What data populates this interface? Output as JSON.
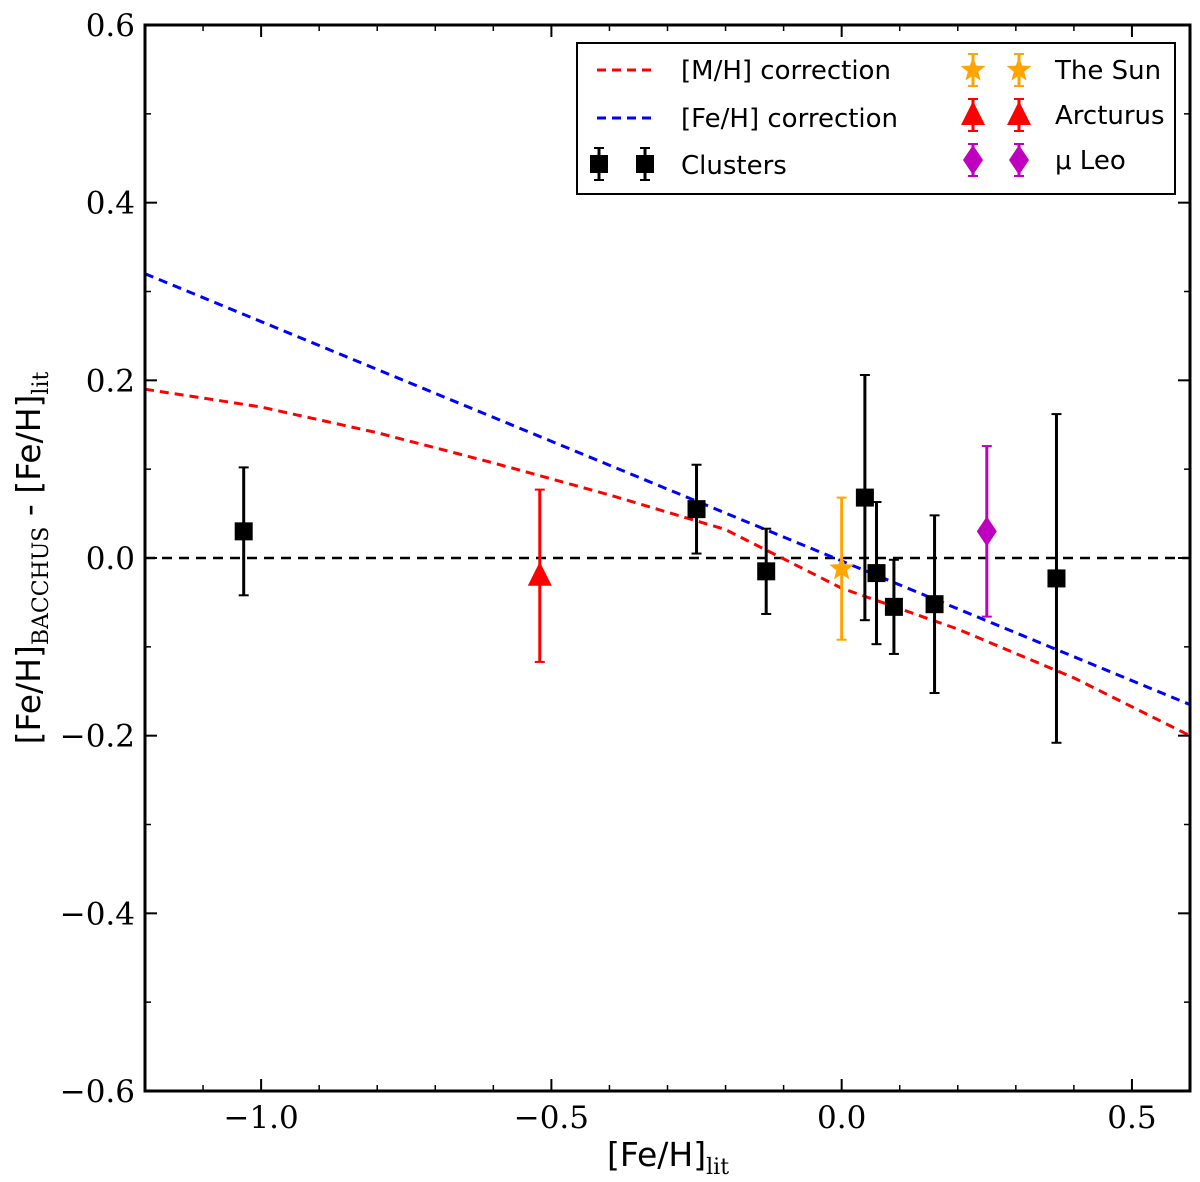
{
  "chart_data": {
    "type": "scatter",
    "title": "",
    "xlabel": {
      "main": "[Fe/H]",
      "sub": "lit"
    },
    "ylabel": {
      "main1": "[Fe/H]",
      "sub1": "BACCHUS",
      "mid": " - [Fe/H]",
      "sub2": "lit"
    },
    "xlim": [
      -1.2,
      0.6
    ],
    "ylim": [
      -0.6,
      0.6
    ],
    "xticks": [
      -1.0,
      -0.5,
      0.0,
      0.5
    ],
    "xtick_labels": [
      "−1.0",
      "−0.5",
      "0.0",
      "0.5"
    ],
    "yticks": [
      -0.6,
      -0.4,
      -0.2,
      0.0,
      0.2,
      0.4,
      0.6
    ],
    "ytick_labels": [
      "−0.6",
      "−0.4",
      "−0.2",
      "0.0",
      "0.2",
      "0.4",
      "0.6"
    ],
    "grid": false,
    "legend_position": "top-right",
    "reference_line": {
      "y": 0.0,
      "color": "#000000",
      "style": "dashed"
    },
    "lines": [
      {
        "name": "[M/H] correction",
        "color": "#ff0000",
        "style": "dashed",
        "x": [
          -1.2,
          -1.0,
          -0.8,
          -0.6,
          -0.4,
          -0.2,
          0.0,
          0.2,
          0.4,
          0.6
        ],
        "y": [
          0.19,
          0.17,
          0.141,
          0.107,
          0.071,
          0.032,
          -0.034,
          -0.08,
          -0.135,
          -0.2
        ]
      },
      {
        "name": "[Fe/H] correction",
        "color": "#0000ff",
        "style": "dashed",
        "x": [
          -1.2,
          0.6
        ],
        "y": [
          0.32,
          -0.165
        ]
      }
    ],
    "series": [
      {
        "name": "Clusters",
        "color": "#000000",
        "marker": "square",
        "points": [
          {
            "x": -1.03,
            "y": 0.03,
            "err": 0.072
          },
          {
            "x": -0.25,
            "y": 0.055,
            "err": 0.05
          },
          {
            "x": -0.13,
            "y": -0.015,
            "err": 0.048
          },
          {
            "x": 0.04,
            "y": 0.068,
            "err": 0.138
          },
          {
            "x": 0.06,
            "y": -0.017,
            "err": 0.08
          },
          {
            "x": 0.09,
            "y": -0.055,
            "err": 0.053
          },
          {
            "x": 0.16,
            "y": -0.052,
            "err": 0.1
          },
          {
            "x": 0.37,
            "y": -0.023,
            "err": 0.185
          }
        ]
      },
      {
        "name": "The Sun",
        "color": "#ffa500",
        "marker": "star",
        "points": [
          {
            "x": 0.0,
            "y": -0.012,
            "err": 0.08
          }
        ]
      },
      {
        "name": "Arcturus",
        "color": "#ff0000",
        "marker": "triangle",
        "points": [
          {
            "x": -0.52,
            "y": -0.02,
            "err": 0.097
          }
        ]
      },
      {
        "name": "μ Leo",
        "color": "#bf00bf",
        "marker": "diamond",
        "points": [
          {
            "x": 0.25,
            "y": 0.03,
            "err": 0.096
          }
        ]
      }
    ],
    "legend": {
      "entries": [
        {
          "label": "[M/H] correction",
          "kind": "line",
          "color": "#ff0000"
        },
        {
          "label": "[Fe/H] correction",
          "kind": "line",
          "color": "#0000ff"
        },
        {
          "label": "Clusters",
          "kind": "marker",
          "marker": "square",
          "color": "#000000"
        },
        {
          "label": "The Sun",
          "kind": "marker",
          "marker": "star",
          "color": "#ffa500"
        },
        {
          "label": "Arcturus",
          "kind": "marker",
          "marker": "triangle",
          "color": "#ff0000"
        },
        {
          "label": "μ Leo",
          "kind": "marker",
          "marker": "diamond",
          "color": "#bf00bf"
        }
      ]
    }
  }
}
